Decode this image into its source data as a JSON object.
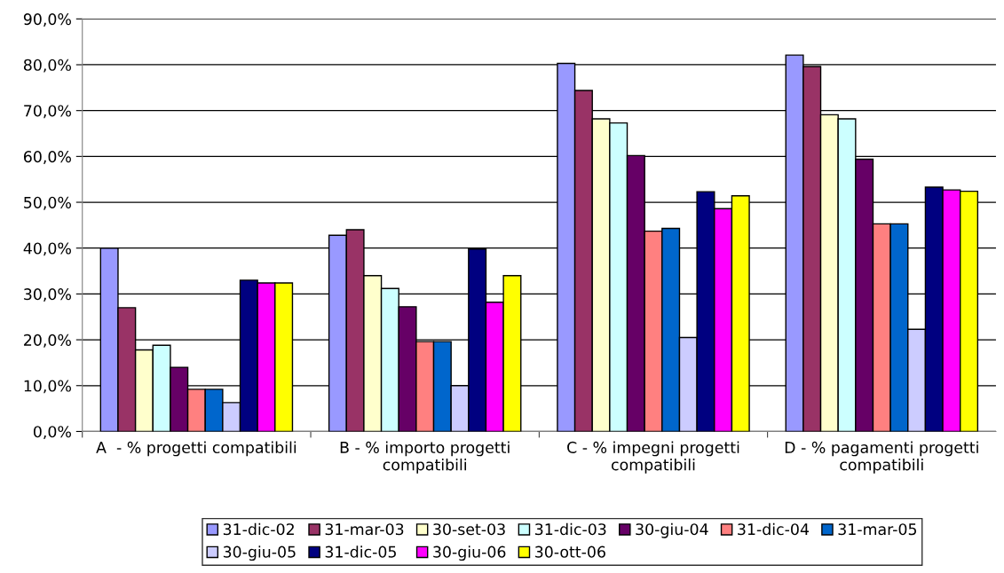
{
  "chart_data": {
    "type": "bar",
    "categories": [
      "A  - % progetti compatibili",
      "B - % importo progetti compatibili",
      "C - % impegni progetti compatibili",
      "D - % pagamenti progetti compatibili"
    ],
    "series": [
      {
        "name": "31-dic-02",
        "color": "#9999ff",
        "values": [
          40.0,
          42.8,
          80.3,
          82.1
        ]
      },
      {
        "name": "31-mar-03",
        "color": "#993366",
        "values": [
          27.0,
          44.0,
          74.4,
          79.6
        ]
      },
      {
        "name": "30-set-03",
        "color": "#ffffcc",
        "values": [
          17.8,
          34.0,
          68.2,
          69.1
        ]
      },
      {
        "name": "31-dic-03",
        "color": "#ccffff",
        "values": [
          18.8,
          31.2,
          67.3,
          68.2
        ]
      },
      {
        "name": "30-giu-04",
        "color": "#660066",
        "values": [
          14.0,
          27.2,
          60.2,
          59.4
        ]
      },
      {
        "name": "31-dic-04",
        "color": "#ff8080",
        "values": [
          9.2,
          19.6,
          43.7,
          45.3
        ]
      },
      {
        "name": "31-mar-05",
        "color": "#0066cc",
        "values": [
          9.2,
          19.6,
          44.3,
          45.3
        ]
      },
      {
        "name": "30-giu-05",
        "color": "#ccccff",
        "values": [
          6.3,
          10.0,
          20.5,
          22.3
        ]
      },
      {
        "name": "31-dic-05",
        "color": "#000080",
        "values": [
          33.0,
          39.8,
          52.3,
          53.3
        ]
      },
      {
        "name": "30-giu-06",
        "color": "#ff00ff",
        "values": [
          32.4,
          28.2,
          48.6,
          52.7
        ]
      },
      {
        "name": "30-ott-06",
        "color": "#ffff00",
        "values": [
          32.4,
          34.0,
          51.4,
          52.4
        ]
      }
    ],
    "ylim": [
      0,
      90
    ],
    "yticks": [
      {
        "value": 0,
        "label": "0,0%"
      },
      {
        "value": 10,
        "label": "10,0%"
      },
      {
        "value": 20,
        "label": "20,0%"
      },
      {
        "value": 30,
        "label": "30,0%"
      },
      {
        "value": 40,
        "label": "40,0%"
      },
      {
        "value": 50,
        "label": "50,0%"
      },
      {
        "value": 60,
        "label": "60,0%"
      },
      {
        "value": 70,
        "label": "70,0%"
      },
      {
        "value": 80,
        "label": "80,0%"
      },
      {
        "value": 90,
        "label": "90,0%"
      }
    ],
    "grid": "y",
    "legend": "bottom"
  }
}
